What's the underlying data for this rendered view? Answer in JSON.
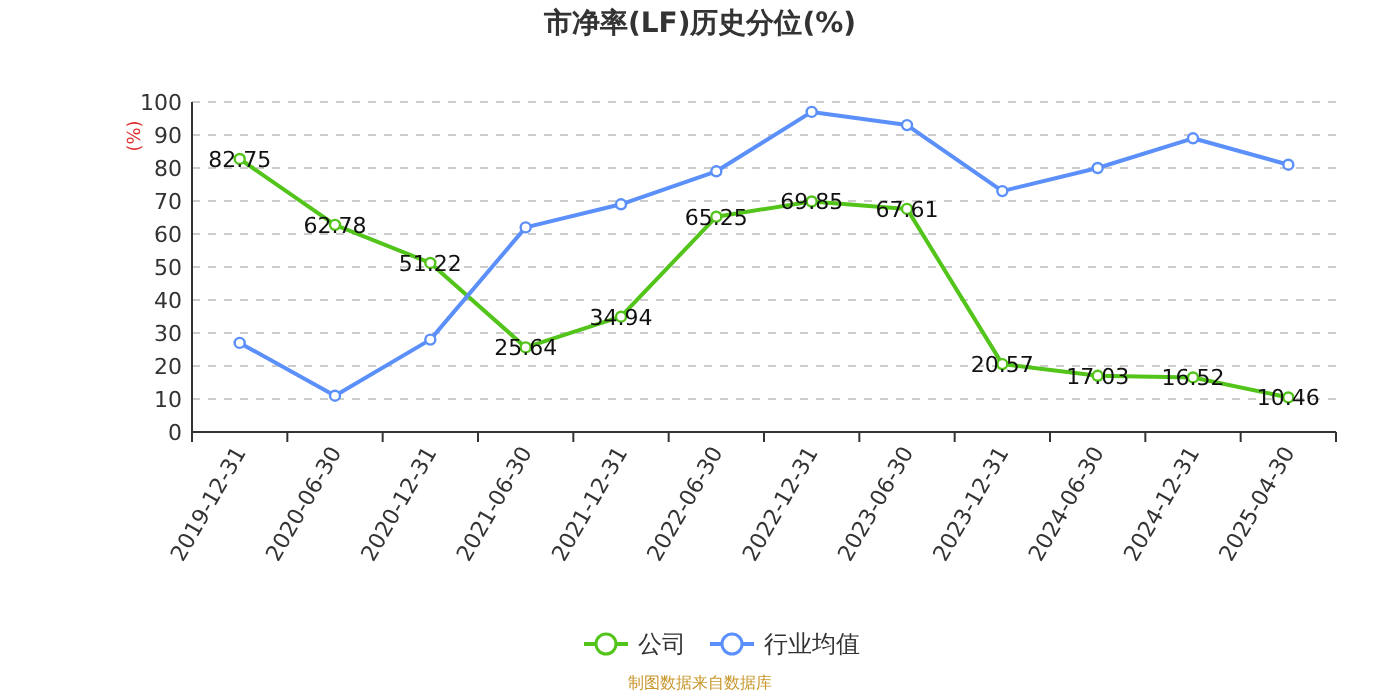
{
  "chart_data": {
    "type": "line",
    "title": "市净率(LF)历史分位(%)",
    "ylabel": "(%)",
    "categories": [
      "2019-12-31",
      "2020-06-30",
      "2020-12-31",
      "2021-06-30",
      "2021-12-31",
      "2022-06-30",
      "2022-12-31",
      "2023-06-30",
      "2023-12-31",
      "2024-06-30",
      "2024-12-31",
      "2025-04-30"
    ],
    "series": [
      {
        "name": "公司",
        "color": "#52c41a",
        "values": [
          82.75,
          62.78,
          51.22,
          25.64,
          34.94,
          65.25,
          69.85,
          67.61,
          20.57,
          17.03,
          16.52,
          10.46
        ],
        "value_labels": [
          "82.75",
          "62.78",
          "51.22",
          "25.64",
          "34.94",
          "65.25",
          "69.85",
          "67.61",
          "20.57",
          "17.03",
          "16.52",
          "10.46"
        ]
      },
      {
        "name": "行业均值",
        "color": "#5b8ff9",
        "values": [
          27,
          11,
          28,
          62,
          69,
          79,
          97,
          93,
          73,
          80,
          89,
          81
        ]
      }
    ],
    "ylim": [
      0,
      100
    ],
    "yticks": [
      0,
      10,
      20,
      30,
      40,
      50,
      60,
      70,
      80,
      90,
      100
    ],
    "grid": "y",
    "legend": "bottom",
    "marker": "circle",
    "line_style": "solid",
    "annotations": [
      "制图数据来自数据库"
    ]
  }
}
